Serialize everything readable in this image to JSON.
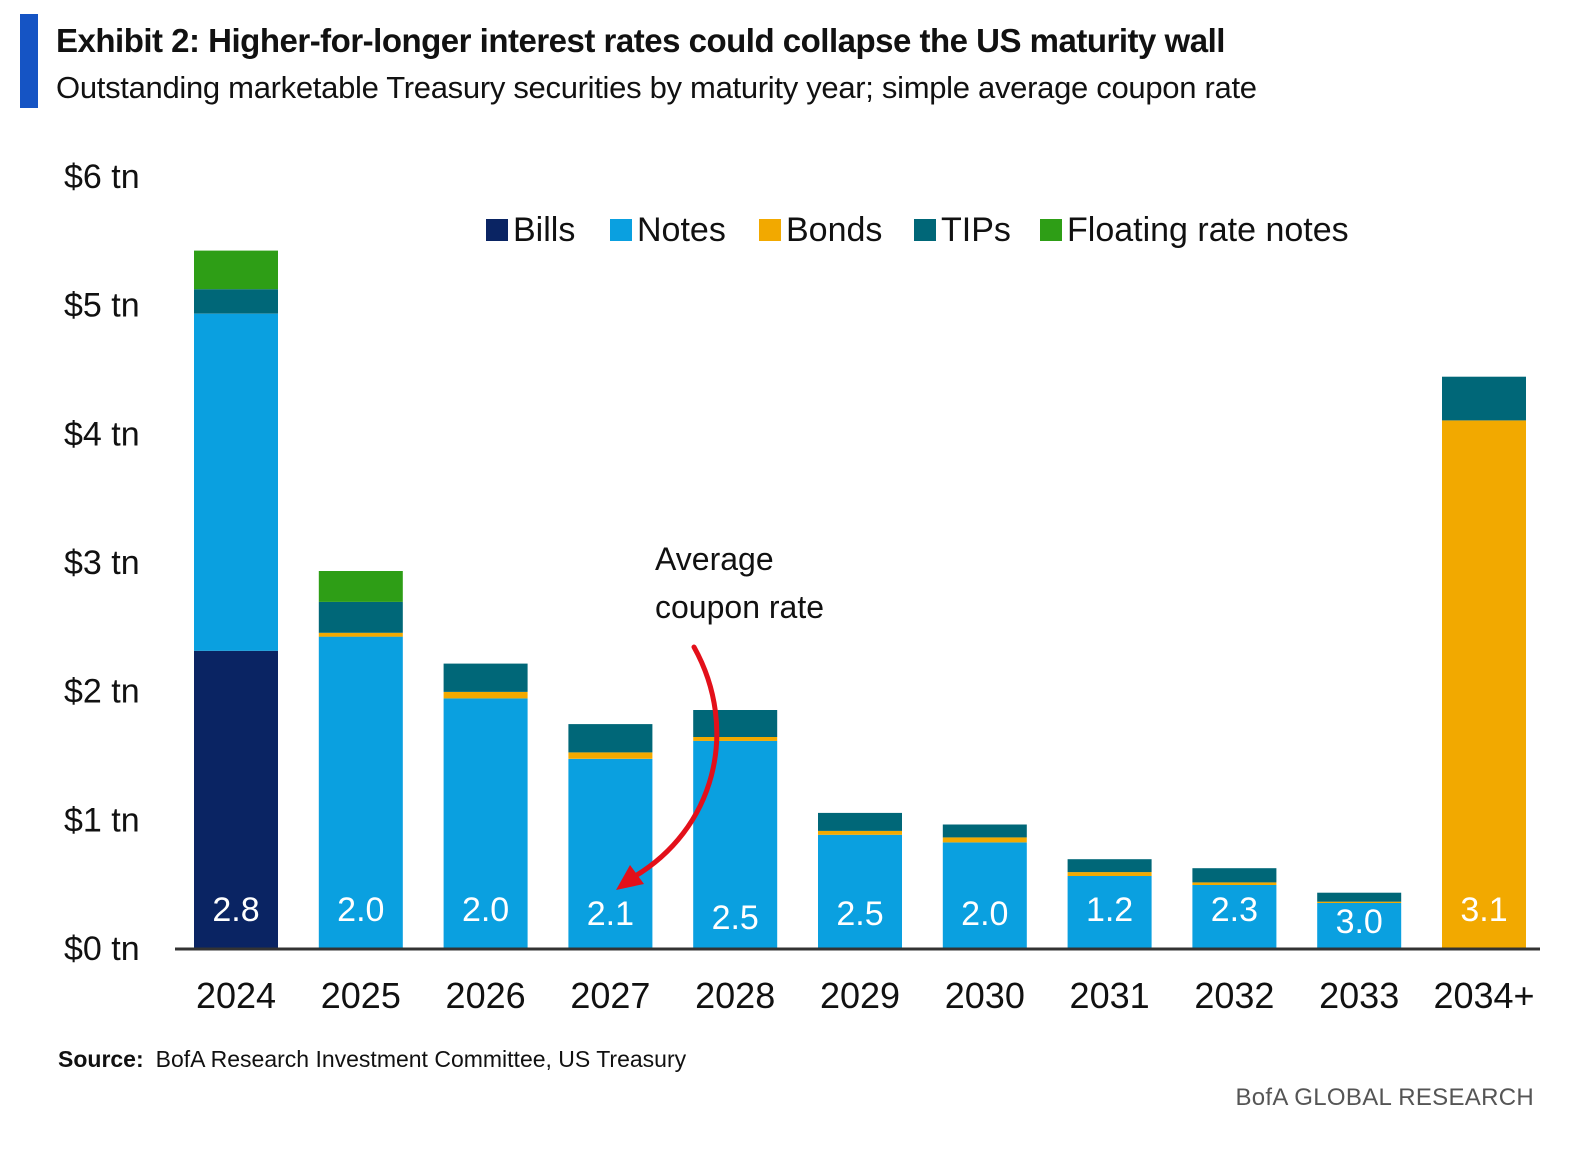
{
  "header": {
    "title": "Exhibit 2: Higher-for-longer interest rates could collapse the US maturity  wall",
    "subtitle": "Outstanding marketable Treasury securities by maturity year; simple average coupon rate"
  },
  "footer": {
    "source_label": "Source:",
    "source_text": "BofA Research Investment  Committee, US Treasury",
    "brand": "BofA GLOBAL RESEARCH"
  },
  "colors": {
    "accent": "#1554C4",
    "bills": "#0A2463",
    "notes": "#0AA0E0",
    "bonds": "#F2A900",
    "tips": "#006778",
    "frn": "#2E9E16",
    "arrow": "#E3101A",
    "axis": "#333333"
  },
  "chart_data": {
    "type": "bar",
    "stacked": true,
    "title": "Exhibit 2: Higher-for-longer interest rates could collapse the US maturity  wall",
    "subtitle": "Outstanding marketable Treasury securities by maturity year; simple average coupon rate",
    "categories": [
      "2024",
      "2025",
      "2026",
      "2027",
      "2028",
      "2029",
      "2030",
      "2031",
      "2032",
      "2033",
      "2034+"
    ],
    "ylim": [
      0,
      6
    ],
    "yticks": [
      {
        "value": 0,
        "label": "$0 tn"
      },
      {
        "value": 1,
        "label": "$1 tn"
      },
      {
        "value": 2,
        "label": "$2 tn"
      },
      {
        "value": 3,
        "label": "$3 tn"
      },
      {
        "value": 4,
        "label": "$4 tn"
      },
      {
        "value": 5,
        "label": "$5 tn"
      },
      {
        "value": 6,
        "label": "$6 tn"
      }
    ],
    "grid": false,
    "legend_position": "top-right",
    "series": [
      {
        "name": "Bills",
        "color_key": "bills",
        "values": [
          2.31,
          0,
          0,
          0,
          0,
          0,
          0,
          0,
          0,
          0,
          0
        ]
      },
      {
        "name": "Notes",
        "color_key": "notes",
        "values": [
          2.62,
          2.42,
          1.94,
          1.47,
          1.61,
          0.88,
          0.82,
          0.56,
          0.49,
          0.35,
          0
        ]
      },
      {
        "name": "Bonds",
        "color_key": "bonds",
        "values": [
          0,
          0.03,
          0.05,
          0.05,
          0.03,
          0.03,
          0.04,
          0.03,
          0.02,
          0.01,
          4.1
        ]
      },
      {
        "name": "TIPs",
        "color_key": "tips",
        "values": [
          0.19,
          0.24,
          0.22,
          0.22,
          0.21,
          0.14,
          0.1,
          0.1,
          0.11,
          0.07,
          0.34
        ]
      },
      {
        "name": "Floating rate notes",
        "color_key": "frn",
        "values": [
          0.3,
          0.24,
          0,
          0,
          0,
          0,
          0,
          0,
          0,
          0,
          0
        ]
      }
    ],
    "coupon_labels": [
      "2.8",
      "2.0",
      "2.0",
      "2.1",
      "2.5",
      "2.5",
      "2.0",
      "1.2",
      "2.3",
      "3.0",
      "3.1"
    ],
    "annotation": {
      "text_line1": "Average",
      "text_line2": "coupon  rate",
      "points_to": "2027"
    }
  }
}
